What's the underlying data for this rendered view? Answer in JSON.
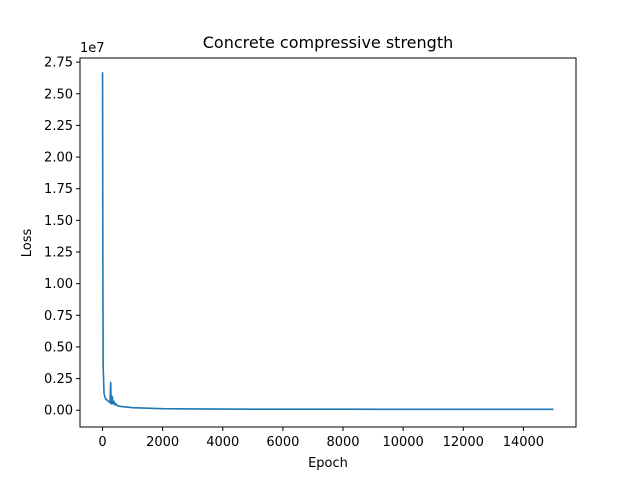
{
  "chart_data": {
    "type": "line",
    "title": "Concrete compressive strength",
    "xlabel": "Epoch",
    "ylabel": "Loss",
    "y_offset_label": "1e7",
    "y_scale_factor": 10000000,
    "xlim": [
      -750,
      15750
    ],
    "ylim": [
      -0.1325,
      2.7825
    ],
    "xticks": [
      0,
      2000,
      4000,
      6000,
      8000,
      10000,
      12000,
      14000
    ],
    "xtick_labels": [
      "0",
      "2000",
      "4000",
      "6000",
      "8000",
      "10000",
      "12000",
      "14000"
    ],
    "yticks": [
      0.0,
      0.25,
      0.5,
      0.75,
      1.0,
      1.25,
      1.5,
      1.75,
      2.0,
      2.25,
      2.5,
      2.75
    ],
    "ytick_labels": [
      "0.00",
      "0.25",
      "0.50",
      "0.75",
      "1.00",
      "1.25",
      "1.50",
      "1.75",
      "2.00",
      "2.25",
      "2.50",
      "2.75"
    ],
    "grid": false,
    "line_color": "#1f77b4",
    "series": [
      {
        "x": [
          0,
          10,
          20,
          50,
          100,
          200,
          250,
          270,
          290,
          300,
          320,
          350,
          380,
          420,
          450,
          500,
          600,
          800,
          1000,
          1500,
          2000,
          3000,
          5000,
          8000,
          11000,
          15000
        ],
        "values": [
          2.67,
          1.2,
          0.35,
          0.13,
          0.09,
          0.07,
          0.06,
          0.22,
          0.05,
          0.05,
          0.11,
          0.05,
          0.07,
          0.04,
          0.05,
          0.035,
          0.03,
          0.025,
          0.02,
          0.016,
          0.012,
          0.01,
          0.008,
          0.008,
          0.007,
          0.007
        ]
      }
    ]
  }
}
